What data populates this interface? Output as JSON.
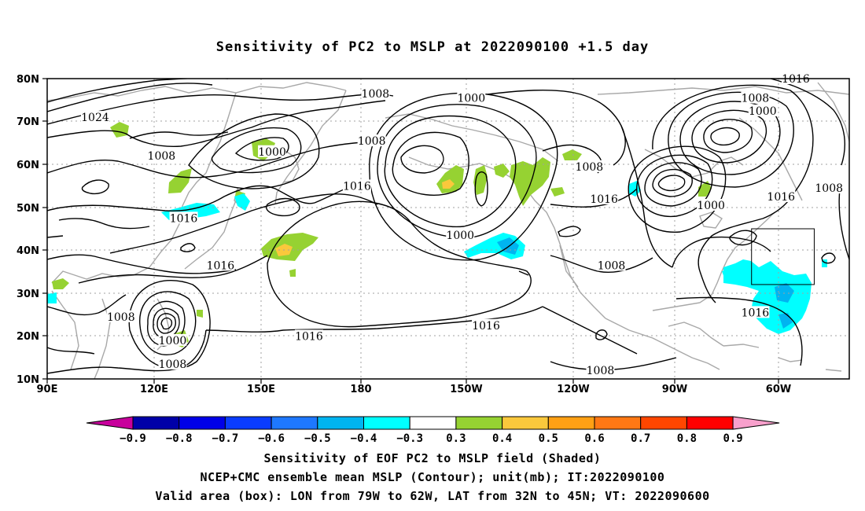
{
  "title": "Sensitivity of PC2 to MSLP at 2022090100 +1.5 day",
  "axes": {
    "x_ticks": [
      "90E",
      "120E",
      "150E",
      "180",
      "150W",
      "120W",
      "90W",
      "60W"
    ],
    "y_ticks": [
      "80N",
      "70N",
      "60N",
      "50N",
      "40N",
      "30N",
      "20N",
      "10N"
    ]
  },
  "contour_labels": [
    {
      "text": "1024",
      "lon": 103,
      "lat": 71
    },
    {
      "text": "1008",
      "lon": 179,
      "lat": 76.5
    },
    {
      "text": "1000",
      "lon": 205,
      "lat": 75.5
    },
    {
      "text": "1016",
      "lon": 293,
      "lat": 80
    },
    {
      "text": "1008",
      "lon": 282,
      "lat": 75.5
    },
    {
      "text": "1000",
      "lon": 284,
      "lat": 72.5
    },
    {
      "text": "1008",
      "lon": 178,
      "lat": 65.5
    },
    {
      "text": "1000",
      "lon": 151,
      "lat": 63
    },
    {
      "text": "1008",
      "lon": 121,
      "lat": 62
    },
    {
      "text": "1008",
      "lon": 237,
      "lat": 59.5
    },
    {
      "text": "1016",
      "lon": 174,
      "lat": 55
    },
    {
      "text": "1016",
      "lon": 241,
      "lat": 52
    },
    {
      "text": "1016",
      "lon": 289,
      "lat": 52.5
    },
    {
      "text": "1008",
      "lon": 302,
      "lat": 54.5
    },
    {
      "text": "1000",
      "lon": 270,
      "lat": 50.5
    },
    {
      "text": "1016",
      "lon": 127,
      "lat": 47.5
    },
    {
      "text": "1000",
      "lon": 202,
      "lat": 43.5
    },
    {
      "text": "1016",
      "lon": 137,
      "lat": 36.5
    },
    {
      "text": "1008",
      "lon": 243,
      "lat": 36.5
    },
    {
      "text": "1008",
      "lon": 110,
      "lat": 24.5
    },
    {
      "text": "1016",
      "lon": 282,
      "lat": 25.5
    },
    {
      "text": "1016",
      "lon": 209,
      "lat": 22.5
    },
    {
      "text": "1016",
      "lon": 161,
      "lat": 20
    },
    {
      "text": "1000",
      "lon": 124,
      "lat": 19
    },
    {
      "text": "1008",
      "lon": 124,
      "lat": 13.5
    },
    {
      "text": "1008",
      "lon": 240,
      "lat": 12
    }
  ],
  "valid_box": {
    "lon_min": 281,
    "lon_max": 298,
    "lat_min": 32,
    "lat_max": 45
  },
  "colorbar": {
    "labels": [
      "−0.9",
      "−0.8",
      "−0.7",
      "−0.6",
      "−0.5",
      "−0.4",
      "−0.3",
      "0.3",
      "0.4",
      "0.5",
      "0.6",
      "0.7",
      "0.8",
      "0.9"
    ],
    "colors": [
      "#0000a8",
      "#0000e8",
      "#0a3cff",
      "#1e78ff",
      "#00b4f0",
      "#00ffff",
      "#ffffff",
      "#96d232",
      "#fac83c",
      "#ffa014",
      "#ff7814",
      "#ff4600",
      "#ff0000"
    ],
    "left_arrow_color": "#c8009c",
    "right_arrow_color": "#f8a0cc"
  },
  "captions": [
    "Sensitivity of EOF PC2 to MSLP field (Shaded)",
    "NCEP+CMC ensemble mean MSLP (Contour); unit(mb); IT:2022090100",
    "Valid area (box): LON from 79W to 62W, LAT from 32N to 45N; VT: 2022090600"
  ],
  "colors": {
    "contour": "#000000",
    "coast": "#a8a8a8",
    "grid": "#a0a0a0",
    "green": "#96d232",
    "cyan": "#00ffff",
    "deep_cyan": "#00b4f0",
    "orange": "#fac83c"
  }
}
